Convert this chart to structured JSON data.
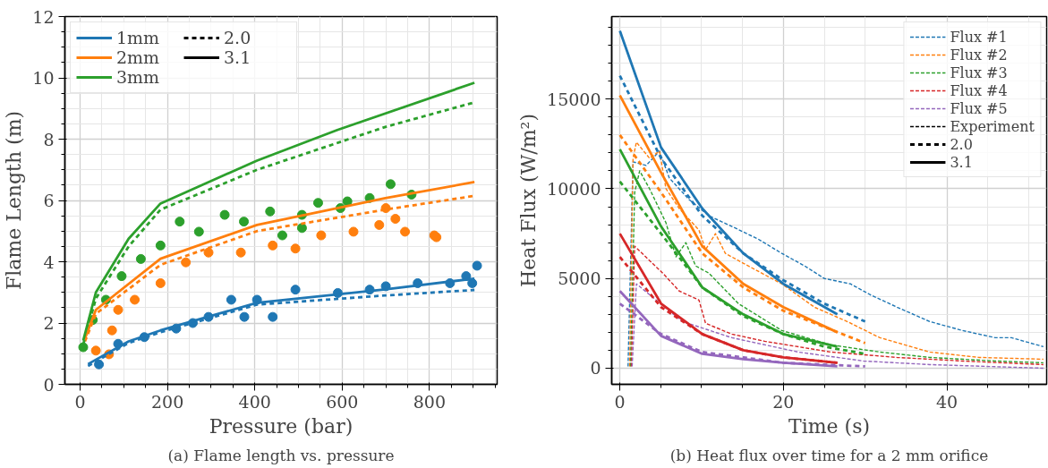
{
  "chart_data": [
    {
      "type": "line",
      "xlabel": "Pressure (bar)",
      "ylabel": "Flame Length (m)",
      "xlim": [
        -35,
        955
      ],
      "ylim": [
        0,
        12
      ],
      "xticks": [
        0,
        200,
        400,
        600,
        800
      ],
      "yticks": [
        0,
        2,
        4,
        6,
        8,
        10,
        12
      ],
      "grid": true,
      "legend": "top left",
      "annotations": [
        "(a) Flame length vs. pressure"
      ],
      "series": [
        {
          "type": "scatter",
          "marker": "circle",
          "color": "#1f77b4",
          "x": [
            43,
            87,
            147,
            220,
            258,
            294,
            346,
            376,
            405,
            441,
            493,
            590,
            663,
            700,
            773,
            847,
            884,
            898,
            909
          ],
          "values": [
            0.65,
            1.32,
            1.54,
            1.82,
            2.0,
            2.2,
            2.76,
            2.2,
            2.76,
            2.2,
            3.09,
            2.98,
            3.09,
            3.2,
            3.3,
            3.3,
            3.53,
            3.3,
            3.87
          ]
        },
        {
          "type": "scatter",
          "marker": "circle",
          "color": "#ff7f0e",
          "x": [
            36,
            66,
            73,
            87,
            125,
            184,
            242,
            294,
            368,
            441,
            493,
            552,
            626,
            685,
            700,
            722,
            744,
            811,
            816
          ],
          "values": [
            1.1,
            0.98,
            1.76,
            2.43,
            2.76,
            3.3,
            3.98,
            4.3,
            4.3,
            4.53,
            4.43,
            4.86,
            4.98,
            5.2,
            5.75,
            5.4,
            4.98,
            4.86,
            4.8
          ]
        },
        {
          "type": "scatter",
          "marker": "circle",
          "color": "#2ca02c",
          "x": [
            7,
            29,
            59,
            95,
            139,
            184,
            228,
            272,
            331,
            375,
            435,
            463,
            508,
            508,
            545,
            596,
            612,
            663,
            711,
            759
          ],
          "values": [
            1.21,
            2.1,
            2.76,
            3.53,
            4.09,
            4.53,
            5.31,
            4.98,
            5.53,
            5.31,
            5.64,
            4.86,
            5.53,
            5.1,
            5.92,
            5.75,
            5.97,
            6.08,
            6.53,
            6.19
          ]
        },
        {
          "line_style": "dotted",
          "color": "#1f77b4",
          "x": [
            18,
            111,
            184,
            405,
            699,
            903
          ],
          "values": [
            0.6,
            1.35,
            1.7,
            2.6,
            2.9,
            3.08
          ]
        },
        {
          "line_style": "dotted",
          "color": "#ff7f0e",
          "x": [
            11,
            36,
            184,
            405,
            699,
            903
          ],
          "values": [
            1.4,
            2.3,
            3.9,
            5.0,
            5.7,
            6.15
          ]
        },
        {
          "line_style": "dotted",
          "color": "#2ca02c",
          "x": [
            7,
            36,
            111,
            184,
            405,
            699,
            903
          ],
          "values": [
            1.3,
            2.8,
            4.5,
            5.7,
            7.0,
            8.4,
            9.2
          ]
        },
        {
          "line_style": "solid",
          "name": "1mm",
          "color": "#1f77b4",
          "x": [
            18,
            111,
            184,
            405,
            699,
            903
          ],
          "values": [
            0.66,
            1.4,
            1.76,
            2.66,
            3.1,
            3.45
          ]
        },
        {
          "line_style": "solid",
          "name": "2mm",
          "color": "#ff7f0e",
          "x": [
            11,
            36,
            184,
            405,
            699,
            903
          ],
          "values": [
            1.5,
            2.43,
            4.1,
            5.2,
            6.08,
            6.6
          ]
        },
        {
          "line_style": "solid",
          "name": "3mm",
          "color": "#2ca02c",
          "x": [
            7,
            36,
            111,
            184,
            405,
            589,
            903
          ],
          "values": [
            1.43,
            3.0,
            4.75,
            5.9,
            7.3,
            8.3,
            9.84
          ]
        },
        {
          "line_style": "dotted",
          "name": "2.0",
          "color": "#000000"
        },
        {
          "line_style": "solid",
          "name": "3.1",
          "color": "#000000"
        }
      ]
    },
    {
      "type": "line",
      "xlabel": "Time (s)",
      "ylabel": "Heat Flux (W/m²)",
      "xlim": [
        -1,
        52.2
      ],
      "ylim": [
        -900,
        19600
      ],
      "xticks": [
        0,
        20,
        40
      ],
      "yticks": [
        0,
        5000,
        10000,
        15000
      ],
      "grid": true,
      "legend": "top right",
      "annotations": [
        "(b) Heat flux over time for a 2 mm orifice"
      ],
      "series": [
        {
          "line_style": "dashed",
          "name": "Flux #1",
          "color": "#1f77b4",
          "x": [
            1.0,
            1.61,
            3.22,
            4.84,
            6.05,
            8.46,
            10.88,
            13.7,
            16.9,
            19.8,
            22.6,
            25.0,
            28.2,
            30.6,
            33.9,
            37.9,
            41.9,
            45.9,
            47.9,
            51.8
          ],
          "values": [
            100,
            11500,
            11300,
            12100,
            10600,
            9400,
            8500,
            7900,
            7200,
            6400,
            5700,
            5000,
            4700,
            4100,
            3400,
            2600,
            2100,
            1700,
            1700,
            1200
          ]
        },
        {
          "line_style": "dashed",
          "name": "Flux #2",
          "color": "#ff7f0e",
          "x": [
            1.2,
            1.61,
            2.02,
            3.63,
            4.84,
            5.64,
            7.26,
            9.67,
            10.48,
            11.69,
            12.9,
            15.7,
            19.8,
            23.8,
            27.8,
            31.8,
            37.9,
            43.9,
            51.8
          ],
          "values": [
            100,
            11700,
            12600,
            11700,
            12100,
            10000,
            8900,
            7700,
            6600,
            7500,
            6400,
            5700,
            4700,
            3400,
            2600,
            1700,
            900,
            600,
            500
          ]
        },
        {
          "line_style": "dashed",
          "name": "Flux #3",
          "color": "#2ca02c",
          "x": [
            1.3,
            1.81,
            2.42,
            3.63,
            5.64,
            6.85,
            8.06,
            9.27,
            10.88,
            14.5,
            19.8,
            25.8,
            31.8,
            37.9,
            45.9,
            51.8
          ],
          "values": [
            100,
            9800,
            11000,
            10000,
            8100,
            6200,
            7000,
            5700,
            5300,
            3600,
            2100,
            1300,
            900,
            600,
            400,
            300
          ]
        },
        {
          "line_style": "dashed",
          "name": "Flux #4",
          "color": "#d62728",
          "x": [
            1.4,
            1.81,
            3.63,
            5.24,
            7.26,
            9.67,
            10.48,
            13.7,
            17.7,
            25.8,
            33.9,
            41.9,
            51.8
          ],
          "values": [
            100,
            6800,
            6000,
            5300,
            4300,
            3800,
            2500,
            1900,
            1500,
            900,
            600,
            400,
            200
          ]
        },
        {
          "line_style": "dashed",
          "name": "Flux #5",
          "color": "#9467bd",
          "x": [
            1.5,
            2.02,
            5.24,
            7.66,
            13.7,
            21.8,
            29.8,
            37.9,
            51.8
          ],
          "values": [
            100,
            4700,
            3500,
            2600,
            1700,
            900,
            400,
            200,
            0
          ]
        },
        {
          "line_style": "dotted",
          "color": "#1f77b4",
          "x": [
            0,
            5.04,
            10.08,
            15.1,
            20.0,
            25.0,
            30.0
          ],
          "values": [
            16300,
            11700,
            8500,
            6400,
            4900,
            3600,
            2600
          ]
        },
        {
          "line_style": "dotted",
          "color": "#ff7f0e",
          "x": [
            0,
            5.04,
            10.08,
            15.1,
            20.0,
            25.0,
            30.0
          ],
          "values": [
            13000,
            9800,
            6400,
            4500,
            3200,
            2300,
            1400
          ]
        },
        {
          "line_style": "dotted",
          "color": "#2ca02c",
          "x": [
            0,
            5.04,
            10.08,
            15.1,
            20.0,
            25.0,
            30.0
          ],
          "values": [
            10400,
            7500,
            4500,
            2900,
            1900,
            1200,
            800
          ]
        },
        {
          "line_style": "dotted",
          "color": "#d62728",
          "x": [
            0,
            5.04,
            10.08,
            15.1,
            20.0,
            26.6
          ],
          "values": [
            6200,
            3400,
            1900,
            1000,
            600,
            300
          ]
        },
        {
          "line_style": "dotted",
          "color": "#9467bd",
          "x": [
            0,
            5.04,
            10.08,
            15.1,
            20.0,
            30.0
          ],
          "values": [
            3600,
            1900,
            900,
            600,
            300,
            100
          ]
        },
        {
          "line_style": "solid",
          "color": "#1f77b4",
          "x": [
            0,
            5.04,
            10.08,
            15.1,
            20.0,
            26.6
          ],
          "values": [
            18800,
            12300,
            8900,
            6400,
            4700,
            3000
          ]
        },
        {
          "line_style": "solid",
          "color": "#ff7f0e",
          "x": [
            0,
            5.04,
            10.08,
            15.1,
            20.0,
            26.6
          ],
          "values": [
            15200,
            10900,
            6800,
            4700,
            3400,
            2000
          ]
        },
        {
          "line_style": "solid",
          "color": "#2ca02c",
          "x": [
            0,
            5.04,
            10.08,
            15.1,
            20.0,
            26.6
          ],
          "values": [
            12200,
            7900,
            4500,
            3000,
            1900,
            1200
          ]
        },
        {
          "line_style": "solid",
          "color": "#d62728",
          "x": [
            0,
            5.04,
            10.08,
            15.1,
            20.0,
            26.6
          ],
          "values": [
            7500,
            3600,
            1900,
            1000,
            600,
            300
          ]
        },
        {
          "line_style": "solid",
          "color": "#9467bd",
          "x": [
            0,
            5.04,
            10.08,
            15.1,
            20.0,
            26.6
          ],
          "values": [
            4300,
            1800,
            800,
            500,
            300,
            100
          ]
        },
        {
          "line_style": "dashed",
          "name": "Experiment",
          "color": "#000000"
        },
        {
          "line_style": "dotted",
          "name": "2.0",
          "color": "#000000"
        },
        {
          "line_style": "solid",
          "name": "3.1",
          "color": "#000000"
        }
      ]
    }
  ]
}
